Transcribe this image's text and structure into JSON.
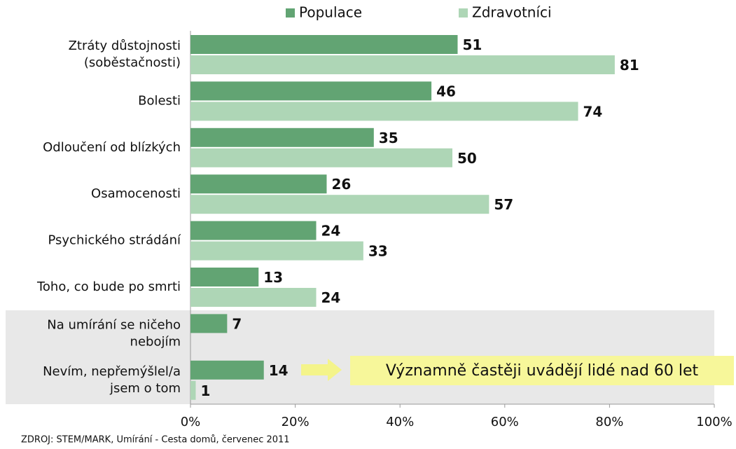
{
  "chart_data": {
    "type": "bar",
    "orientation": "horizontal",
    "categories": [
      "Ztráty důstojnosti\n(soběstačnosti)",
      "Bolesti",
      "Odloučení od blízkých",
      "Osamocenosti",
      "Psychického strádání",
      "Toho, co bude po smrti",
      "Na umírání se ničeho\nnebojím",
      "Nevím, nepřemýšlel/a\njsem o tom"
    ],
    "series": [
      {
        "name": "Populace",
        "color": "#62a473",
        "values": [
          51,
          46,
          35,
          26,
          24,
          13,
          7,
          14
        ]
      },
      {
        "name": "Zdravotníci",
        "color": "#aed6b6",
        "values": [
          81,
          74,
          50,
          57,
          33,
          24,
          null,
          1
        ]
      }
    ],
    "xlim": [
      0,
      100
    ],
    "xticks": [
      {
        "value": 0,
        "label": "0%"
      },
      {
        "value": 20,
        "label": "20%"
      },
      {
        "value": 40,
        "label": "40%"
      },
      {
        "value": 60,
        "label": "60%"
      },
      {
        "value": 80,
        "label": "80%"
      },
      {
        "value": 100,
        "label": "100%"
      }
    ],
    "grid": false,
    "legend": "top",
    "annotation": "Významně častěji uvádějí lidé nad 60 let",
    "source": "ZDROJ: STEM/MARK, Umírání - Cesta domů, červenec 2011"
  }
}
